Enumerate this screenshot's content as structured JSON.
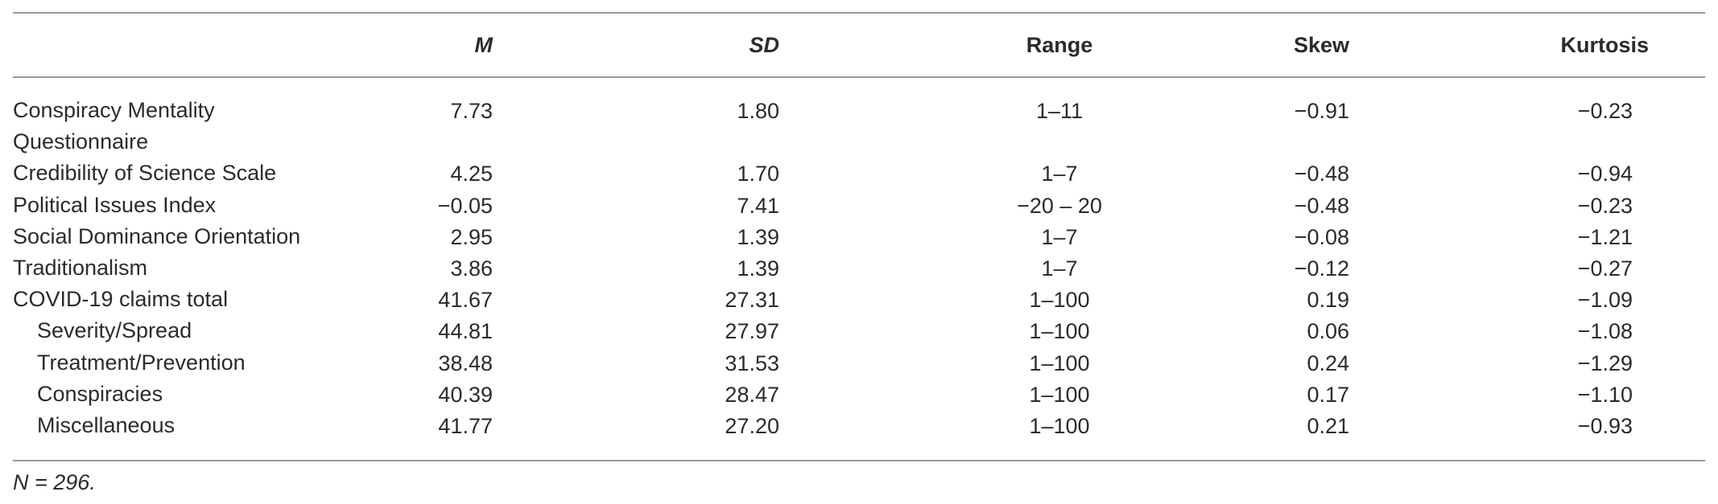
{
  "table": {
    "headers": {
      "label": "",
      "m": "M",
      "sd": "SD",
      "range": "Range",
      "skew": "Skew",
      "kurtosis": "Kurtosis"
    },
    "rows": [
      {
        "label": "Conspiracy Mentality Questionnaire",
        "m": "7.73",
        "sd": "1.80",
        "range": "1–11",
        "skew": "−0.91",
        "kurtosis": "−0.23",
        "indent": false,
        "lines": 2
      },
      {
        "label": "Credibility of Science Scale",
        "m": "4.25",
        "sd": "1.70",
        "range": "1–7",
        "skew": "−0.48",
        "kurtosis": "−0.94",
        "indent": false,
        "lines": 1
      },
      {
        "label": "Political Issues Index",
        "m": "−0.05",
        "sd": "7.41",
        "range": "−20 – 20",
        "skew": "−0.48",
        "kurtosis": "−0.23",
        "indent": false,
        "lines": 1
      },
      {
        "label": "Social Dominance Orientation",
        "m": "2.95",
        "sd": "1.39",
        "range": "1–7",
        "skew": "−0.08",
        "kurtosis": "−1.21",
        "indent": false,
        "lines": 1
      },
      {
        "label": "Traditionalism",
        "m": "3.86",
        "sd": "1.39",
        "range": "1–7",
        "skew": "−0.12",
        "kurtosis": "−0.27",
        "indent": false,
        "lines": 1
      },
      {
        "label": "COVID-19 claims total",
        "m": "41.67",
        "sd": "27.31",
        "range": "1–100",
        "skew": "0.19",
        "kurtosis": "−1.09",
        "indent": false,
        "lines": 1
      },
      {
        "label": "Severity/Spread",
        "m": "44.81",
        "sd": "27.97",
        "range": "1–100",
        "skew": "0.06",
        "kurtosis": "−1.08",
        "indent": true,
        "lines": 1
      },
      {
        "label": "Treatment/Prevention",
        "m": "38.48",
        "sd": "31.53",
        "range": "1–100",
        "skew": "0.24",
        "kurtosis": "−1.29",
        "indent": true,
        "lines": 1
      },
      {
        "label": "Conspiracies",
        "m": "40.39",
        "sd": "28.47",
        "range": "1–100",
        "skew": "0.17",
        "kurtosis": "−1.10",
        "indent": true,
        "lines": 1
      },
      {
        "label": "Miscellaneous",
        "m": "41.77",
        "sd": "27.20",
        "range": "1–100",
        "skew": "0.21",
        "kurtosis": "−0.93",
        "indent": true,
        "lines": 1
      }
    ],
    "note": "N = 296."
  }
}
